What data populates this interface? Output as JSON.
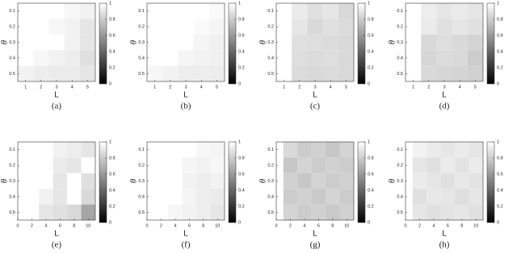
{
  "chart_data": [
    {
      "type": "heatmap",
      "caption": "(a)",
      "x_label": "L",
      "y_label": "θ",
      "x": [
        1,
        2,
        3,
        4,
        5
      ],
      "y": [
        0.1,
        0.2,
        0.3,
        0.4,
        0.5
      ],
      "xlim": [
        0.5,
        5.5
      ],
      "ylim": [
        0.05,
        0.55
      ],
      "xticks": [
        1,
        2,
        3,
        4,
        5
      ],
      "yticks": [
        0.1,
        0.2,
        0.3,
        0.4,
        0.5
      ],
      "clim": [
        0,
        1
      ],
      "cticks": [
        0,
        0.2,
        0.4,
        0.6,
        0.8,
        1
      ],
      "z": [
        [
          1,
          1,
          1,
          0.97,
          0.95
        ],
        [
          1,
          1,
          0.97,
          0.95,
          0.9
        ],
        [
          1,
          1,
          1,
          0.95,
          0.9
        ],
        [
          1,
          0.97,
          0.95,
          0.93,
          0.88
        ],
        [
          0.95,
          0.93,
          0.92,
          0.92,
          0.9
        ]
      ]
    },
    {
      "type": "heatmap",
      "caption": "(b)",
      "x_label": "L",
      "y_label": "θ",
      "x": [
        1,
        2,
        3,
        4,
        5
      ],
      "y": [
        0.1,
        0.2,
        0.3,
        0.4,
        0.5
      ],
      "xlim": [
        0.5,
        5.5
      ],
      "ylim": [
        0.05,
        0.55
      ],
      "xticks": [
        1,
        2,
        3,
        4,
        5
      ],
      "yticks": [
        0.1,
        0.2,
        0.3,
        0.4,
        0.5
      ],
      "clim": [
        0,
        1
      ],
      "cticks": [
        0,
        0.2,
        0.4,
        0.6,
        0.8,
        1
      ],
      "z": [
        [
          1,
          1,
          1,
          1,
          0.98
        ],
        [
          1,
          1,
          1,
          0.98,
          0.96
        ],
        [
          1,
          1,
          1,
          0.96,
          0.94
        ],
        [
          1,
          1,
          0.96,
          0.95,
          0.94
        ],
        [
          0.97,
          0.95,
          0.93,
          0.93,
          0.93
        ]
      ]
    },
    {
      "type": "heatmap",
      "caption": "(c)",
      "x_label": "L",
      "y_label": "θ",
      "x": [
        1,
        2,
        3,
        4,
        5
      ],
      "y": [
        0.1,
        0.2,
        0.3,
        0.4,
        0.5
      ],
      "xlim": [
        0.5,
        5.5
      ],
      "ylim": [
        0.05,
        0.55
      ],
      "xticks": [
        1,
        2,
        3,
        4,
        5
      ],
      "yticks": [
        0.1,
        0.2,
        0.3,
        0.4,
        0.5
      ],
      "clim": [
        0,
        1
      ],
      "cticks": [
        0,
        0.2,
        0.4,
        0.6,
        0.8,
        1
      ],
      "z": [
        [
          1,
          0.92,
          0.88,
          0.9,
          0.85
        ],
        [
          1,
          0.9,
          0.85,
          0.88,
          0.86
        ],
        [
          1,
          0.88,
          0.87,
          0.86,
          0.85
        ],
        [
          1,
          0.87,
          0.86,
          0.87,
          0.85
        ],
        [
          1,
          0.86,
          0.85,
          0.86,
          0.85
        ]
      ]
    },
    {
      "type": "heatmap",
      "caption": "(d)",
      "x_label": "L",
      "y_label": "θ",
      "x": [
        1,
        2,
        3,
        4,
        5
      ],
      "y": [
        0.1,
        0.2,
        0.3,
        0.4,
        0.5
      ],
      "xlim": [
        0.5,
        5.5
      ],
      "ylim": [
        0.05,
        0.55
      ],
      "xticks": [
        1,
        2,
        3,
        4,
        5
      ],
      "yticks": [
        0.1,
        0.2,
        0.3,
        0.4,
        0.5
      ],
      "clim": [
        0,
        1
      ],
      "cticks": [
        0,
        0.2,
        0.4,
        0.6,
        0.8,
        1
      ],
      "z": [
        [
          1,
          0.93,
          0.9,
          0.92,
          0.9
        ],
        [
          1,
          0.92,
          0.88,
          0.9,
          0.88
        ],
        [
          1,
          0.85,
          0.87,
          0.85,
          0.83
        ],
        [
          1,
          0.84,
          0.86,
          0.85,
          0.8
        ],
        [
          1,
          0.85,
          0.84,
          0.83,
          0.82
        ]
      ]
    },
    {
      "type": "heatmap",
      "caption": "(e)",
      "x_label": "L",
      "y_label": "θ",
      "x": [
        2,
        4,
        6,
        8,
        10
      ],
      "y": [
        0.1,
        0.2,
        0.3,
        0.4,
        0.5
      ],
      "xlim": [
        0,
        11
      ],
      "ylim": [
        0.05,
        0.55
      ],
      "xticks": [
        0,
        2,
        4,
        6,
        8,
        10
      ],
      "yticks": [
        0.1,
        0.2,
        0.3,
        0.4,
        0.5
      ],
      "clim": [
        0,
        1
      ],
      "cticks": [
        0,
        0.2,
        0.4,
        0.6,
        0.8,
        1
      ],
      "z": [
        [
          1,
          1,
          0.95,
          0.93,
          0.9
        ],
        [
          1,
          1,
          0.92,
          0.9,
          1
        ],
        [
          1,
          1,
          0.9,
          1,
          0.88
        ],
        [
          1,
          0.95,
          0.9,
          1,
          0.85
        ],
        [
          1,
          0.9,
          0.88,
          0.85,
          0.65
        ]
      ]
    },
    {
      "type": "heatmap",
      "caption": "(f)",
      "x_label": "L",
      "y_label": "θ",
      "x": [
        2,
        4,
        6,
        8,
        10
      ],
      "y": [
        0.1,
        0.2,
        0.3,
        0.4,
        0.5
      ],
      "xlim": [
        0,
        11
      ],
      "ylim": [
        0.05,
        0.55
      ],
      "xticks": [
        0,
        2,
        4,
        6,
        8,
        10
      ],
      "yticks": [
        0.1,
        0.2,
        0.3,
        0.4,
        0.5
      ],
      "clim": [
        0,
        1
      ],
      "cticks": [
        0,
        0.2,
        0.4,
        0.6,
        0.8,
        1
      ],
      "z": [
        [
          1,
          1,
          1,
          0.97,
          0.96
        ],
        [
          1,
          1,
          0.96,
          0.95,
          0.97
        ],
        [
          1,
          1,
          0.95,
          0.93,
          0.95
        ],
        [
          1,
          1,
          0.96,
          0.93,
          0.92
        ],
        [
          1,
          0.97,
          0.95,
          0.93,
          0.9
        ]
      ]
    },
    {
      "type": "heatmap",
      "caption": "(g)",
      "x_label": "L",
      "y_label": "θ",
      "x": [
        2,
        4,
        6,
        8,
        10
      ],
      "y": [
        0.1,
        0.2,
        0.3,
        0.4,
        0.5
      ],
      "xlim": [
        0,
        11
      ],
      "ylim": [
        0.05,
        0.55
      ],
      "xticks": [
        0,
        2,
        4,
        6,
        8,
        10
      ],
      "yticks": [
        0.1,
        0.2,
        0.3,
        0.4,
        0.5
      ],
      "clim": [
        0,
        1
      ],
      "cticks": [
        0,
        0.2,
        0.4,
        0.6,
        0.8,
        1
      ],
      "z": [
        [
          0.85,
          0.8,
          0.82,
          0.78,
          0.83
        ],
        [
          0.78,
          0.83,
          0.8,
          0.82,
          0.8
        ],
        [
          0.82,
          0.78,
          0.83,
          0.8,
          0.82
        ],
        [
          0.8,
          0.82,
          0.79,
          0.83,
          0.8
        ],
        [
          0.83,
          0.8,
          0.82,
          0.79,
          0.82
        ]
      ]
    },
    {
      "type": "heatmap",
      "caption": "(h)",
      "x_label": "L",
      "y_label": "θ",
      "x": [
        2,
        4,
        6,
        8,
        10
      ],
      "y": [
        0.1,
        0.2,
        0.3,
        0.4,
        0.5
      ],
      "xlim": [
        0,
        11
      ],
      "ylim": [
        0.05,
        0.55
      ],
      "xticks": [
        0,
        2,
        4,
        6,
        8,
        10
      ],
      "yticks": [
        0.1,
        0.2,
        0.3,
        0.4,
        0.5
      ],
      "clim": [
        0,
        1
      ],
      "cticks": [
        0,
        0.2,
        0.4,
        0.6,
        0.8,
        1
      ],
      "z": [
        [
          0.95,
          0.92,
          0.9,
          0.92,
          0.9
        ],
        [
          0.9,
          0.88,
          0.92,
          0.89,
          0.92
        ],
        [
          0.92,
          0.9,
          0.88,
          0.91,
          0.89
        ],
        [
          0.88,
          0.91,
          0.9,
          0.87,
          0.9
        ],
        [
          0.9,
          0.88,
          0.89,
          0.9,
          0.88
        ]
      ]
    }
  ]
}
